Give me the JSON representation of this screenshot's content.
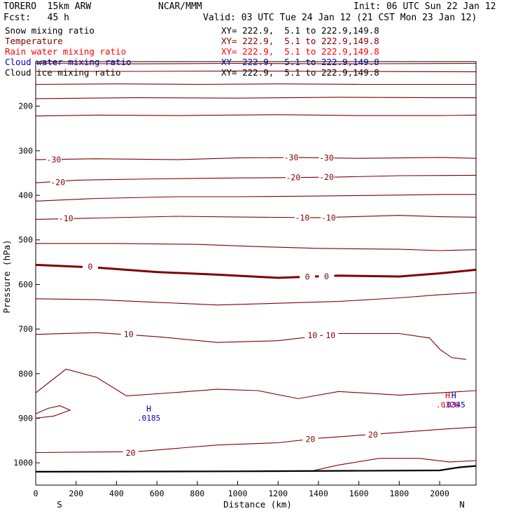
{
  "header": {
    "model": "TORERO  15km ARW",
    "center": "NCAR/MMM",
    "init": "Init: 06 UTC Sun 22 Jan 12",
    "fcst": "Fcst:   45 h",
    "valid": "Valid: 03 UTC Tue 24 Jan 12 (21 CST Mon 23 Jan 12)"
  },
  "legend": [
    {
      "label": "Snow mixing ratio",
      "color": "#000000",
      "xy": "XY= 222.9,  5.1 to 222.9,149.8"
    },
    {
      "label": "Temperature",
      "color": "#800000",
      "xy": "XY= 222.9,  5.1 to 222.9,149.8"
    },
    {
      "label": "Rain water mixing ratio",
      "color": "#ff0000",
      "xy": "XY= 222.9,  5.1 to 222.9,149.8"
    },
    {
      "label": "Cloud water mixing ratio",
      "color": "#0000c0",
      "xy": "XY= 222.9,  5.1 to 222.9,149.8"
    },
    {
      "label": "Cloud ice mixing ratio",
      "color": "#000000",
      "xy": "XY= 222.9,  5.1 to 222.9,149.8"
    }
  ],
  "chart_data": {
    "type": "contour",
    "xlabel": "Distance (km)",
    "ylabel": "Pressure (hPa)",
    "xlim": [
      0,
      2180
    ],
    "ylim": [
      1050,
      100
    ],
    "xticks": [
      0,
      200,
      400,
      600,
      800,
      1000,
      1200,
      1400,
      1600,
      1800,
      2000
    ],
    "yticks": [
      200,
      300,
      400,
      500,
      600,
      700,
      800,
      900,
      1000
    ],
    "x_end_labels": {
      "left": "S",
      "right": "N"
    },
    "temperature_contours": [
      {
        "level": null,
        "points": [
          [
            0,
            104
          ],
          [
            500,
            105
          ],
          [
            1000,
            104
          ],
          [
            1500,
            105
          ],
          [
            2180,
            104
          ]
        ]
      },
      {
        "level": null,
        "points": [
          [
            0,
            122
          ],
          [
            500,
            122
          ],
          [
            1000,
            121
          ],
          [
            1500,
            122
          ],
          [
            2180,
            123
          ]
        ]
      },
      {
        "level": null,
        "points": [
          [
            0,
            151
          ],
          [
            400,
            150
          ],
          [
            800,
            151
          ],
          [
            1200,
            150
          ],
          [
            1600,
            151
          ],
          [
            2180,
            151
          ]
        ]
      },
      {
        "level": null,
        "points": [
          [
            0,
            183
          ],
          [
            500,
            181
          ],
          [
            1000,
            182
          ],
          [
            1500,
            180
          ],
          [
            2000,
            181
          ],
          [
            2180,
            181
          ]
        ]
      },
      {
        "level": null,
        "points": [
          [
            0,
            222
          ],
          [
            300,
            220
          ],
          [
            700,
            221
          ],
          [
            1200,
            219
          ],
          [
            1600,
            221
          ],
          [
            2000,
            221
          ],
          [
            2180,
            220
          ]
        ]
      },
      {
        "level": -30,
        "points": [
          [
            0,
            320
          ],
          [
            300,
            318
          ],
          [
            700,
            320
          ],
          [
            1000,
            316
          ],
          [
            1300,
            315
          ],
          [
            1600,
            317
          ],
          [
            2000,
            315
          ],
          [
            2180,
            317
          ]
        ]
      },
      {
        "level": -20,
        "points": [
          [
            0,
            372
          ],
          [
            200,
            366
          ],
          [
            600,
            363
          ],
          [
            1000,
            361
          ],
          [
            1300,
            360
          ],
          [
            1500,
            359
          ],
          [
            1800,
            356
          ],
          [
            2180,
            355
          ]
        ]
      },
      {
        "level": null,
        "points": [
          [
            0,
            413
          ],
          [
            300,
            407
          ],
          [
            700,
            403
          ],
          [
            1000,
            403
          ],
          [
            1300,
            402
          ],
          [
            1700,
            400
          ],
          [
            2000,
            398
          ],
          [
            2180,
            398
          ]
        ]
      },
      {
        "level": -10,
        "points": [
          [
            0,
            454
          ],
          [
            300,
            451
          ],
          [
            700,
            447
          ],
          [
            1100,
            449
          ],
          [
            1400,
            450
          ],
          [
            1800,
            445
          ],
          [
            2000,
            448
          ],
          [
            2180,
            449
          ]
        ]
      },
      {
        "level": null,
        "points": [
          [
            0,
            508
          ],
          [
            400,
            508
          ],
          [
            800,
            510
          ],
          [
            1100,
            515
          ],
          [
            1400,
            519
          ],
          [
            1800,
            521
          ],
          [
            2000,
            524
          ],
          [
            2180,
            522
          ]
        ]
      },
      {
        "level": 0,
        "emphasis": true,
        "points": [
          [
            0,
            556
          ],
          [
            300,
            562
          ],
          [
            600,
            572
          ],
          [
            900,
            578
          ],
          [
            1200,
            585
          ],
          [
            1500,
            580
          ],
          [
            1800,
            582
          ],
          [
            2000,
            575
          ],
          [
            2180,
            567
          ]
        ]
      },
      {
        "level": null,
        "points": [
          [
            0,
            632
          ],
          [
            300,
            634
          ],
          [
            600,
            640
          ],
          [
            900,
            646
          ],
          [
            1200,
            642
          ],
          [
            1500,
            638
          ],
          [
            1800,
            630
          ],
          [
            2000,
            623
          ],
          [
            2180,
            618
          ]
        ]
      },
      {
        "level": 10,
        "points": [
          [
            0,
            712
          ],
          [
            300,
            708
          ],
          [
            600,
            717
          ],
          [
            900,
            730
          ],
          [
            1200,
            726
          ],
          [
            1500,
            710
          ],
          [
            1800,
            710
          ],
          [
            1950,
            720
          ],
          [
            2000,
            745
          ],
          [
            2060,
            764
          ],
          [
            2130,
            768
          ]
        ]
      },
      {
        "level": null,
        "points": [
          [
            0,
            843
          ],
          [
            150,
            790
          ],
          [
            300,
            808
          ],
          [
            450,
            850
          ],
          [
            700,
            842
          ],
          [
            900,
            835
          ],
          [
            1100,
            838
          ],
          [
            1300,
            856
          ],
          [
            1500,
            840
          ],
          [
            1800,
            848
          ],
          [
            2000,
            843
          ],
          [
            2180,
            838
          ]
        ]
      },
      {
        "level": null,
        "points": [
          [
            0,
            890
          ],
          [
            60,
            878
          ],
          [
            120,
            872
          ],
          [
            170,
            882
          ],
          [
            90,
            895
          ],
          [
            0,
            900
          ]
        ]
      },
      {
        "level": 20,
        "points": [
          [
            0,
            977
          ],
          [
            500,
            975
          ],
          [
            900,
            960
          ],
          [
            1200,
            955
          ],
          [
            1400,
            945
          ],
          [
            1700,
            935
          ],
          [
            2000,
            925
          ],
          [
            2180,
            920
          ]
        ]
      },
      {
        "level": null,
        "points": [
          [
            1350,
            1020
          ],
          [
            1500,
            1005
          ],
          [
            1700,
            990
          ],
          [
            1900,
            990
          ],
          [
            2050,
            998
          ],
          [
            2180,
            995
          ]
        ]
      }
    ],
    "ground": [
      [
        0,
        1020
      ],
      [
        1000,
        1019
      ],
      [
        2000,
        1017
      ],
      [
        2100,
        1010
      ],
      [
        2180,
        1007
      ]
    ],
    "contour_labels": [
      {
        "text": "-30",
        "x": 90,
        "p": 320
      },
      {
        "text": "-30",
        "x": 1265,
        "p": 315
      },
      {
        "text": "-30",
        "x": 1440,
        "p": 316
      },
      {
        "text": "-20",
        "x": 110,
        "p": 371
      },
      {
        "text": "-20",
        "x": 1275,
        "p": 360
      },
      {
        "text": "-20",
        "x": 1440,
        "p": 359
      },
      {
        "text": "-10",
        "x": 150,
        "p": 452
      },
      {
        "text": "-10",
        "x": 1320,
        "p": 450
      },
      {
        "text": "-10",
        "x": 1450,
        "p": 450
      },
      {
        "text": "0",
        "x": 270,
        "p": 560
      },
      {
        "text": "0",
        "x": 1345,
        "p": 583
      },
      {
        "text": "0",
        "x": 1440,
        "p": 582
      },
      {
        "text": "10",
        "x": 460,
        "p": 712
      },
      {
        "text": "10",
        "x": 1370,
        "p": 714
      },
      {
        "text": "10",
        "x": 1460,
        "p": 714
      },
      {
        "text": "20",
        "x": 470,
        "p": 978
      },
      {
        "text": "20",
        "x": 1360,
        "p": 947
      },
      {
        "text": "20",
        "x": 1670,
        "p": 937
      }
    ],
    "extrema": [
      {
        "mark": "H",
        "value": ".0185",
        "x": 560,
        "p": 885,
        "color": "#0000c0"
      },
      {
        "mark": "H",
        "value": ".0326",
        "x": 2040,
        "p": 855,
        "color": "#ff0000"
      },
      {
        "mark": "H",
        "value": ".0345",
        "x": 2070,
        "p": 855,
        "color": "#0000c0"
      }
    ]
  }
}
